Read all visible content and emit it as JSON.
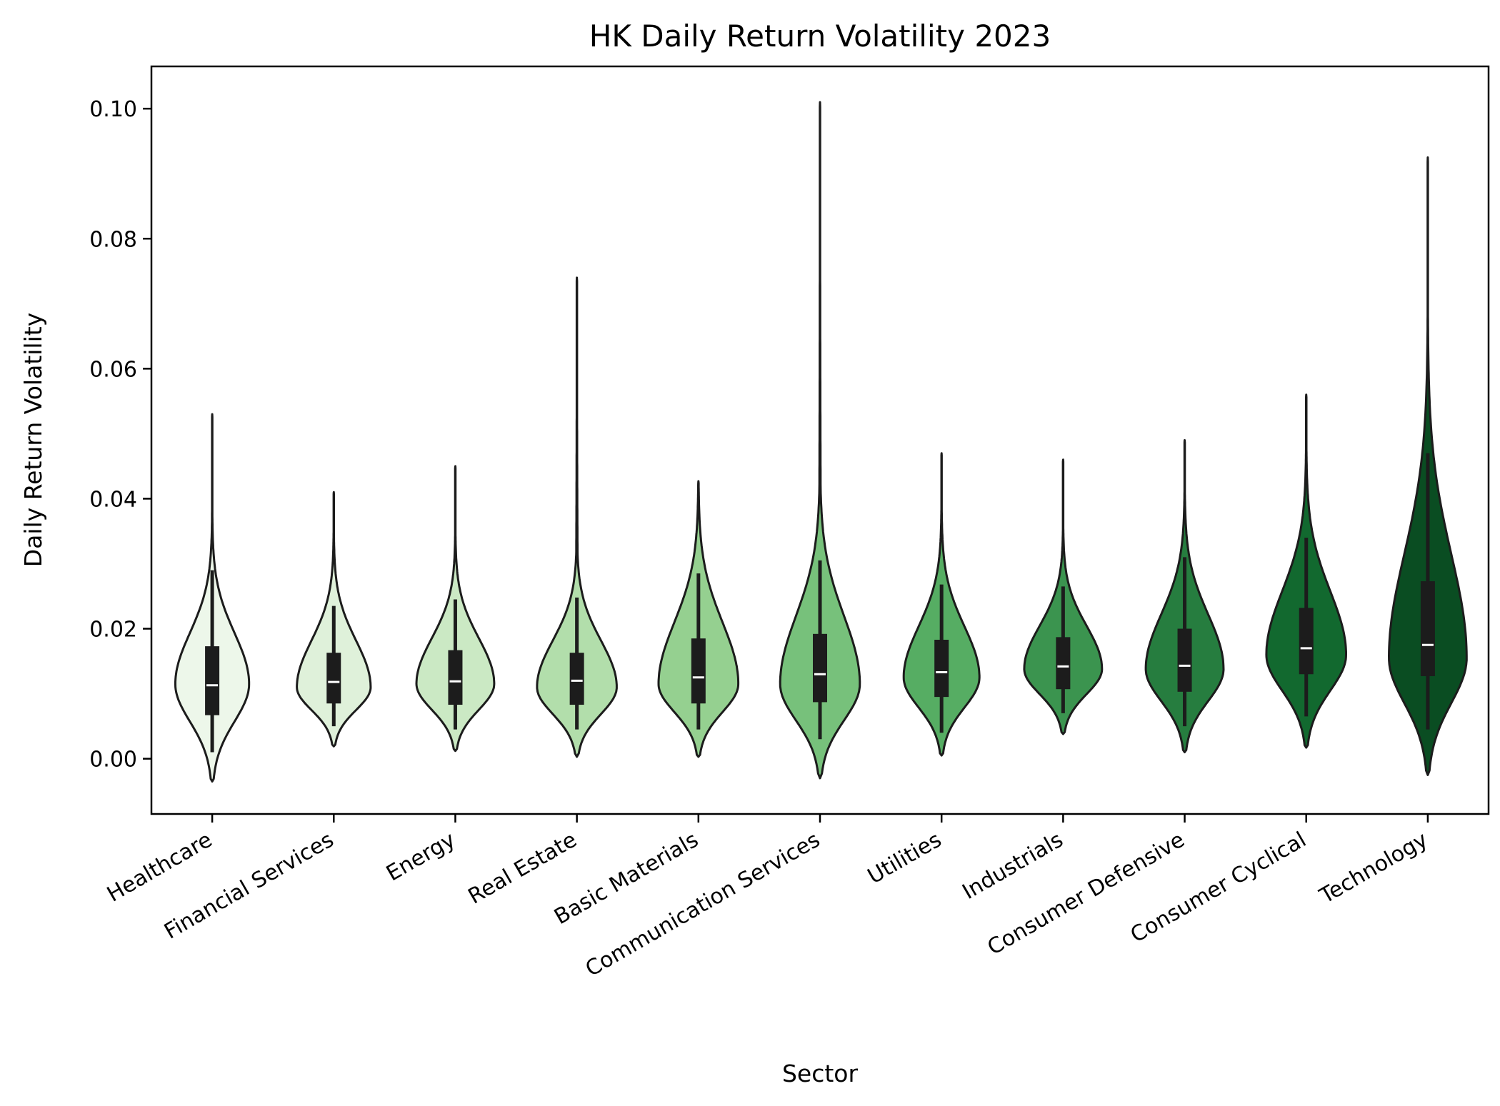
{
  "chart_data": {
    "type": "violin",
    "title": "HK Daily Return Volatility 2023",
    "xlabel": "Sector",
    "ylabel": "Daily Return Volatility",
    "ylim": [
      -0.0085,
      0.1065
    ],
    "yticks": [
      "0.00",
      "0.02",
      "0.04",
      "0.06",
      "0.08",
      "0.10"
    ],
    "ytick_values": [
      0.0,
      0.02,
      0.04,
      0.06,
      0.08,
      0.1
    ],
    "grid": false,
    "legend": "none",
    "categories": [
      "Healthcare",
      "Financial Services",
      "Energy",
      "Real Estate",
      "Basic Materials",
      "Communication Services",
      "Utilities",
      "Industrials",
      "Consumer Defensive",
      "Consumer Cyclical",
      "Technology"
    ],
    "colors": [
      "#edf7ea",
      "#dff1da",
      "#cbe9c4",
      "#b2deab",
      "#95d090",
      "#77c17b",
      "#56ad63",
      "#3b944f",
      "#267d3f",
      "#12692f",
      "#0a4d22"
    ],
    "series": [
      {
        "category": "Healthcare",
        "min": 0.001,
        "q1": 0.0067,
        "median": 0.0113,
        "q3": 0.0173,
        "whisker_low": 0.001,
        "whisker_high": 0.029,
        "max": 0.053,
        "kde_low": -0.0035,
        "kde_high": 0.053,
        "mode": 0.0115,
        "width": 0.74
      },
      {
        "category": "Financial Services",
        "min": 0.005,
        "q1": 0.0085,
        "median": 0.0118,
        "q3": 0.0163,
        "whisker_low": 0.005,
        "whisker_high": 0.0235,
        "max": 0.041,
        "kde_low": 0.0019,
        "kde_high": 0.041,
        "mode": 0.011,
        "width": 0.74
      },
      {
        "category": "Energy",
        "min": 0.0045,
        "q1": 0.0083,
        "median": 0.0119,
        "q3": 0.0167,
        "whisker_low": 0.0045,
        "whisker_high": 0.0245,
        "max": 0.045,
        "kde_low": 0.0012,
        "kde_high": 0.045,
        "mode": 0.0115,
        "width": 0.78
      },
      {
        "category": "Real Estate",
        "min": 0.0045,
        "q1": 0.0083,
        "median": 0.012,
        "q3": 0.0163,
        "whisker_low": 0.0045,
        "whisker_high": 0.0248,
        "max": 0.074,
        "kde_low": 0.0003,
        "kde_high": 0.074,
        "mode": 0.011,
        "width": 0.8
      },
      {
        "category": "Basic Materials",
        "min": 0.0045,
        "q1": 0.0085,
        "median": 0.0125,
        "q3": 0.0185,
        "whisker_low": 0.0045,
        "whisker_high": 0.0285,
        "max": 0.0427,
        "kde_low": 0.0003,
        "kde_high": 0.0427,
        "mode": 0.0115,
        "width": 0.8
      },
      {
        "category": "Communication Services",
        "min": 0.003,
        "q1": 0.0087,
        "median": 0.013,
        "q3": 0.0192,
        "whisker_low": 0.003,
        "whisker_high": 0.0305,
        "max": 0.101,
        "kde_low": -0.003,
        "kde_high": 0.101,
        "mode": 0.0115,
        "width": 0.8
      },
      {
        "category": "Utilities",
        "min": 0.004,
        "q1": 0.0095,
        "median": 0.0133,
        "q3": 0.0183,
        "whisker_low": 0.004,
        "whisker_high": 0.0268,
        "max": 0.047,
        "kde_low": 0.0005,
        "kde_high": 0.047,
        "mode": 0.0125,
        "width": 0.76
      },
      {
        "category": "Industrials",
        "min": 0.007,
        "q1": 0.0107,
        "median": 0.0142,
        "q3": 0.0187,
        "whisker_low": 0.007,
        "whisker_high": 0.0265,
        "max": 0.046,
        "kde_low": 0.0038,
        "kde_high": 0.046,
        "mode": 0.0138,
        "width": 0.78
      },
      {
        "category": "Consumer Defensive",
        "min": 0.005,
        "q1": 0.0103,
        "median": 0.0143,
        "q3": 0.02,
        "whisker_low": 0.005,
        "whisker_high": 0.031,
        "max": 0.049,
        "kde_low": 0.001,
        "kde_high": 0.049,
        "mode": 0.0138,
        "width": 0.78
      },
      {
        "category": "Consumer Cyclical",
        "min": 0.0065,
        "q1": 0.013,
        "median": 0.017,
        "q3": 0.0232,
        "whisker_low": 0.0065,
        "whisker_high": 0.034,
        "max": 0.056,
        "kde_low": 0.0017,
        "kde_high": 0.056,
        "mode": 0.016,
        "width": 0.8
      },
      {
        "category": "Technology",
        "min": 0.0045,
        "q1": 0.0127,
        "median": 0.0175,
        "q3": 0.0273,
        "whisker_low": 0.0045,
        "whisker_high": 0.047,
        "max": 0.0925,
        "kde_low": -0.0025,
        "kde_high": 0.0925,
        "mode": 0.0155,
        "width": 0.78
      }
    ]
  }
}
